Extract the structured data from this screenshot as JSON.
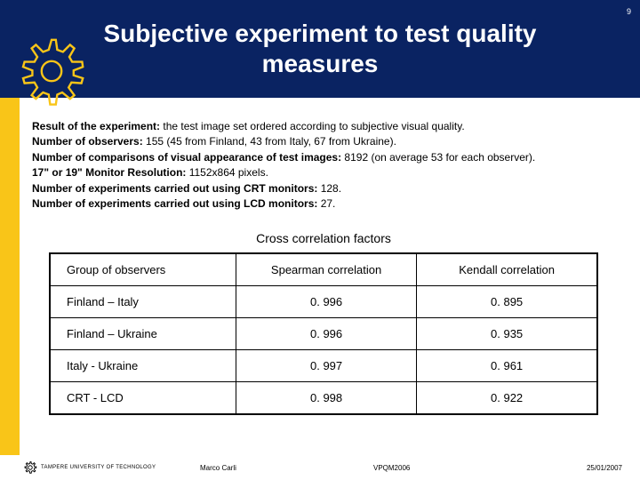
{
  "page_number": "9",
  "title_line1": "Subjective experiment to test quality",
  "title_line2": "measures",
  "results": [
    {
      "label": "Result of the experiment:",
      "value": " the test image set ordered according to subjective visual quality."
    },
    {
      "label": "Number of observers:",
      "value": " 155 (45 from Finland, 43 from Italy, 67 from Ukraine)."
    },
    {
      "label": "Number of comparisons of visual appearance of test images:",
      "value": " 8192 (on average 53 for each observer)."
    },
    {
      "label": "17\" or 19\" Monitor Resolution:",
      "value": " 1152x864 pixels."
    },
    {
      "label": "Number of experiments carried out using CRT monitors:",
      "value": " 128."
    },
    {
      "label": "Number of experiments carried out using LCD monitors:",
      "value": " 27."
    }
  ],
  "table": {
    "title": "Cross correlation factors",
    "columns": [
      "Group of observers",
      "Spearman correlation",
      "Kendall correlation"
    ],
    "rows": [
      [
        "Finland – Italy",
        "0. 996",
        "0. 895"
      ],
      [
        "Finland – Ukraine",
        "0. 996",
        "0. 935"
      ],
      [
        "Italy - Ukraine",
        "0. 997",
        "0. 961"
      ],
      [
        "CRT - LCD",
        "0. 998",
        "0. 922"
      ]
    ],
    "col_widths": [
      "34%",
      "33%",
      "33%"
    ]
  },
  "footer": {
    "university": "TAMPERE UNIVERSITY OF TECHNOLOGY",
    "author": "Marco Carli",
    "conference": "VPQM2006",
    "date": "25/01/2007"
  },
  "colors": {
    "header_bg": "#0a2362",
    "sidebar_bg": "#f9c518",
    "gear_outline": "#f9c518"
  }
}
